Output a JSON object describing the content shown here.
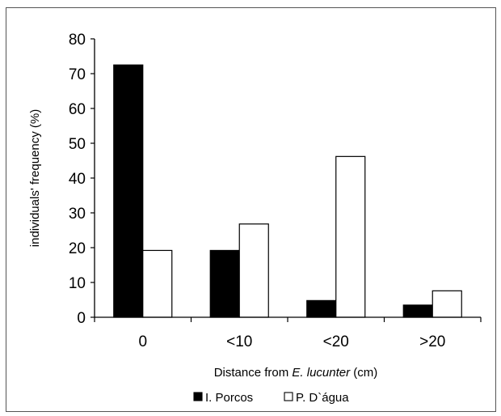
{
  "chart_data": {
    "type": "bar",
    "categories": [
      "0",
      "<10",
      "<20",
      ">20"
    ],
    "series": [
      {
        "name": "I. Porcos",
        "values": [
          72.5,
          19.2,
          4.8,
          3.5
        ],
        "color": "#000000"
      },
      {
        "name": "P. D`água",
        "values": [
          19.2,
          26.8,
          46.2,
          7.6
        ],
        "color": "#ffffff"
      }
    ],
    "xlabel": {
      "prefix": "Distance from ",
      "italic": "E. lucunter",
      "suffix": " (cm)"
    },
    "ylabel": "individuals' frequency (%)",
    "ylim": [
      0,
      80
    ],
    "yticks": [
      "0",
      "10",
      "20",
      "30",
      "40",
      "50",
      "60",
      "70",
      "80"
    ],
    "grid": false,
    "legend": "bottom-center"
  }
}
